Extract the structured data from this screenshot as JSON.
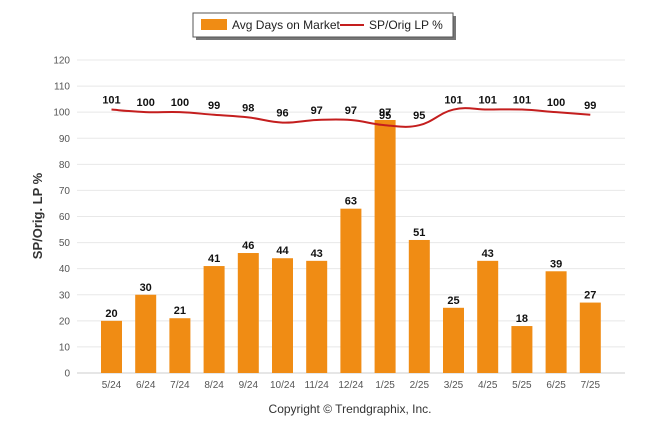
{
  "chart_data": {
    "type": "bar",
    "categories": [
      "5/24",
      "6/24",
      "7/24",
      "8/24",
      "9/24",
      "10/24",
      "11/24",
      "12/24",
      "1/25",
      "2/25",
      "3/25",
      "4/25",
      "5/25",
      "6/25",
      "7/25"
    ],
    "series": [
      {
        "name": "Avg Days on Market",
        "type": "bar",
        "color": "#F08C14",
        "values": [
          20,
          30,
          21,
          41,
          46,
          44,
          43,
          63,
          97,
          51,
          25,
          43,
          18,
          39,
          27
        ]
      },
      {
        "name": "SP/Orig LP %",
        "type": "line",
        "color": "#C41E1E",
        "values": [
          101,
          100,
          100,
          99,
          98,
          96,
          97,
          97,
          95,
          95,
          101,
          101,
          101,
          100,
          99
        ]
      }
    ],
    "ylabel": "SP/Orig. LP %",
    "ylim": [
      0,
      120
    ],
    "yticks": [
      0,
      10,
      20,
      30,
      40,
      50,
      60,
      70,
      80,
      90,
      100,
      110,
      120
    ],
    "grid": true,
    "legend_position": "top-center"
  },
  "legend": {
    "bar_label": "Avg Days on Market",
    "line_label": "SP/Orig LP %"
  },
  "footer": {
    "copyright": "Copyright © Trendgraphix, Inc."
  }
}
